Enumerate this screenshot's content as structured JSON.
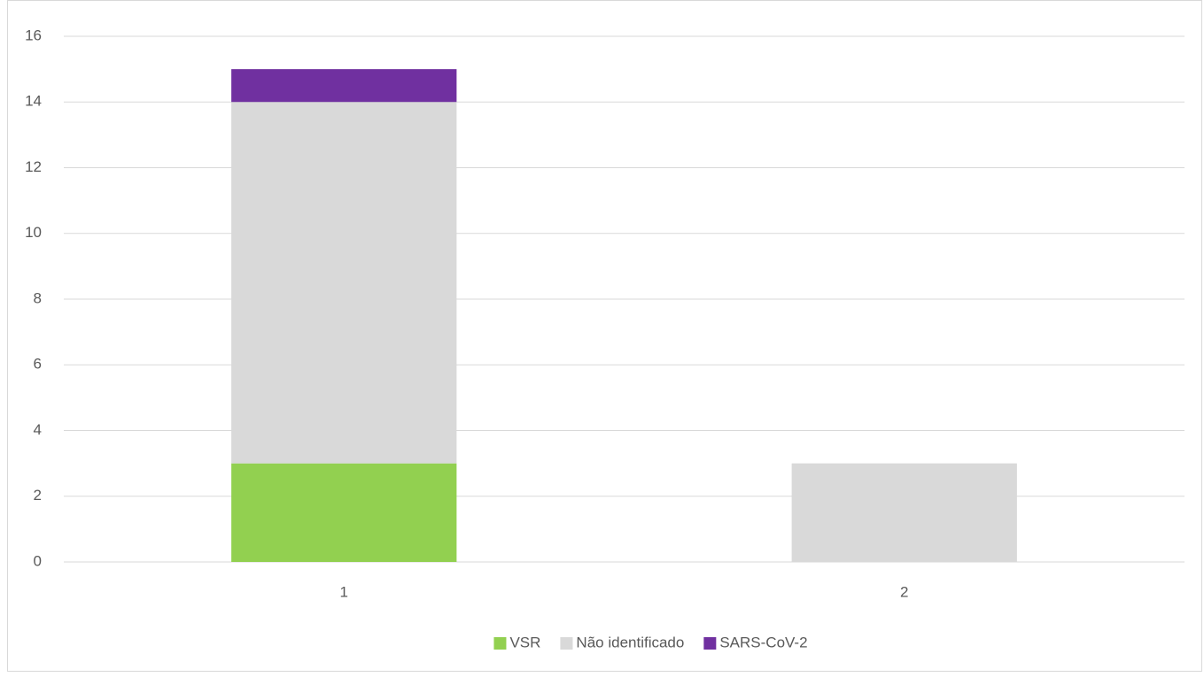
{
  "chart_data": {
    "type": "stacked_bar",
    "categories": [
      "1",
      "2"
    ],
    "series": [
      {
        "name": "VSR",
        "color": "#92d050",
        "values": [
          3,
          0
        ]
      },
      {
        "name": "Não identificado",
        "color": "#d9d9d9",
        "values": [
          11,
          3
        ]
      },
      {
        "name": "SARS-CoV-2",
        "color": "#7030a0",
        "values": [
          1,
          0
        ]
      }
    ],
    "ylim": [
      0,
      16
    ],
    "yticks": [
      0,
      2,
      4,
      6,
      8,
      10,
      12,
      14,
      16
    ],
    "grid": true,
    "legend": "bottom"
  }
}
